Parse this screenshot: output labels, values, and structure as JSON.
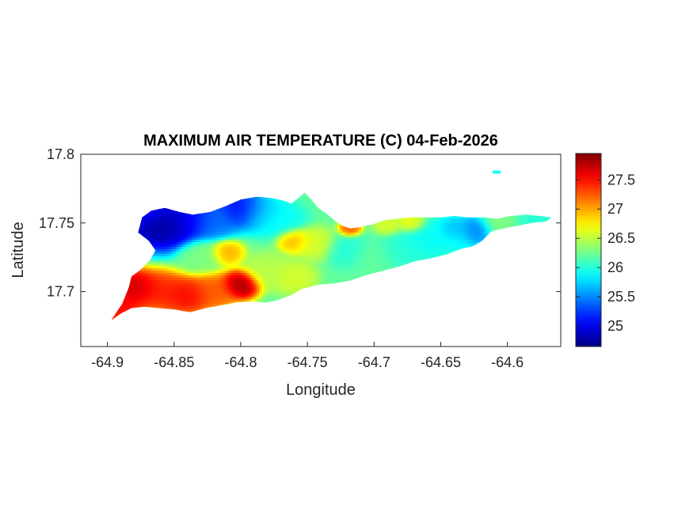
{
  "chart_data": {
    "type": "heatmap",
    "title": "MAXIMUM AIR TEMPERATURE (C) 04-Feb-2026",
    "xlabel": "Longitude",
    "ylabel": "Latitude",
    "xlim": [
      -64.92,
      -64.56
    ],
    "ylim": [
      17.66,
      17.8
    ],
    "xticks": [
      -64.9,
      -64.85,
      -64.8,
      -64.75,
      -64.7,
      -64.65,
      -64.6
    ],
    "xtick_labels": [
      "-64.9",
      "-64.85",
      "-64.8",
      "-64.75",
      "-64.7",
      "-64.65",
      "-64.6"
    ],
    "yticks": [
      17.7,
      17.75,
      17.8
    ],
    "ytick_labels": [
      "17.7",
      "17.75",
      "17.8"
    ],
    "colormap": "jet",
    "clim": [
      24.65,
      27.95
    ],
    "colorbar_ticks": [
      25,
      25.5,
      26,
      26.5,
      27,
      27.5
    ],
    "colorbar_labels": [
      "25",
      "25.5",
      "26",
      "26.5",
      "27",
      "27.5"
    ],
    "island_outline": [
      [
        -64.896,
        17.681
      ],
      [
        -64.889,
        17.691
      ],
      [
        -64.884,
        17.703
      ],
      [
        -64.882,
        17.711
      ],
      [
        -64.875,
        17.716
      ],
      [
        -64.868,
        17.723
      ],
      [
        -64.864,
        17.73
      ],
      [
        -64.869,
        17.737
      ],
      [
        -64.877,
        17.743
      ],
      [
        -64.874,
        17.754
      ],
      [
        -64.867,
        17.759
      ],
      [
        -64.857,
        17.761
      ],
      [
        -64.846,
        17.758
      ],
      [
        -64.836,
        17.756
      ],
      [
        -64.823,
        17.758
      ],
      [
        -64.812,
        17.762
      ],
      [
        -64.8,
        17.767
      ],
      [
        -64.788,
        17.769
      ],
      [
        -64.776,
        17.768
      ],
      [
        -64.767,
        17.766
      ],
      [
        -64.762,
        17.764
      ],
      [
        -64.757,
        17.768
      ],
      [
        -64.752,
        17.772
      ],
      [
        -64.747,
        17.767
      ],
      [
        -64.742,
        17.761
      ],
      [
        -64.736,
        17.757
      ],
      [
        -64.73,
        17.752
      ],
      [
        -64.724,
        17.748
      ],
      [
        -64.718,
        17.746
      ],
      [
        -64.71,
        17.747
      ],
      [
        -64.701,
        17.749
      ],
      [
        -64.692,
        17.752
      ],
      [
        -64.683,
        17.753
      ],
      [
        -64.672,
        17.754
      ],
      [
        -64.66,
        17.754
      ],
      [
        -64.65,
        17.754
      ],
      [
        -64.64,
        17.755
      ],
      [
        -64.63,
        17.754
      ],
      [
        -64.618,
        17.754
      ],
      [
        -64.608,
        17.753
      ],
      [
        -64.598,
        17.755
      ],
      [
        -64.586,
        17.756
      ],
      [
        -64.575,
        17.755
      ],
      [
        -64.567,
        17.754
      ],
      [
        -64.571,
        17.751
      ],
      [
        -64.582,
        17.75
      ],
      [
        -64.592,
        17.748
      ],
      [
        -64.603,
        17.746
      ],
      [
        -64.612,
        17.744
      ],
      [
        -64.619,
        17.737
      ],
      [
        -64.626,
        17.733
      ],
      [
        -64.635,
        17.731
      ],
      [
        -64.646,
        17.727
      ],
      [
        -64.658,
        17.724
      ],
      [
        -64.67,
        17.722
      ],
      [
        -64.682,
        17.718
      ],
      [
        -64.694,
        17.715
      ],
      [
        -64.706,
        17.712
      ],
      [
        -64.718,
        17.708
      ],
      [
        -64.73,
        17.706
      ],
      [
        -64.742,
        17.705
      ],
      [
        -64.754,
        17.702
      ],
      [
        -64.763,
        17.697
      ],
      [
        -64.772,
        17.694
      ],
      [
        -64.781,
        17.692
      ],
      [
        -64.792,
        17.693
      ],
      [
        -64.804,
        17.692
      ],
      [
        -64.815,
        17.69
      ],
      [
        -64.826,
        17.688
      ],
      [
        -64.838,
        17.685
      ],
      [
        -64.85,
        17.687
      ],
      [
        -64.862,
        17.688
      ],
      [
        -64.872,
        17.689
      ],
      [
        -64.882,
        17.688
      ],
      [
        -64.89,
        17.684
      ],
      [
        -64.897,
        17.679
      ]
    ],
    "islet_outline": [
      [
        -64.611,
        17.788
      ],
      [
        -64.605,
        17.788
      ],
      [
        -64.605,
        17.786
      ],
      [
        -64.611,
        17.786
      ]
    ],
    "field_sources": [
      {
        "lon": -64.86,
        "lat": 17.75,
        "value": 24.6,
        "spread": 0.013
      },
      {
        "lon": -64.87,
        "lat": 17.76,
        "value": 25.2,
        "spread": 0.01
      },
      {
        "lon": -64.84,
        "lat": 17.755,
        "value": 25.0,
        "spread": 0.011
      },
      {
        "lon": -64.82,
        "lat": 17.752,
        "value": 25.4,
        "spread": 0.009
      },
      {
        "lon": -64.8,
        "lat": 17.76,
        "value": 25.0,
        "spread": 0.009
      },
      {
        "lon": -64.785,
        "lat": 17.757,
        "value": 25.7,
        "spread": 0.009
      },
      {
        "lon": -64.77,
        "lat": 17.752,
        "value": 25.9,
        "spread": 0.009
      },
      {
        "lon": -64.88,
        "lat": 17.703,
        "value": 27.8,
        "spread": 0.009
      },
      {
        "lon": -64.86,
        "lat": 17.7,
        "value": 27.5,
        "spread": 0.01
      },
      {
        "lon": -64.84,
        "lat": 17.697,
        "value": 27.6,
        "spread": 0.009
      },
      {
        "lon": -64.82,
        "lat": 17.7,
        "value": 27.3,
        "spread": 0.009
      },
      {
        "lon": -64.8,
        "lat": 17.705,
        "value": 27.95,
        "spread": 0.007
      },
      {
        "lon": -64.89,
        "lat": 17.688,
        "value": 27.6,
        "spread": 0.008
      },
      {
        "lon": -64.81,
        "lat": 17.728,
        "value": 27.0,
        "spread": 0.006
      },
      {
        "lon": -64.76,
        "lat": 17.737,
        "value": 27.0,
        "spread": 0.006
      },
      {
        "lon": -64.718,
        "lat": 17.746,
        "value": 27.3,
        "spread": 0.004
      },
      {
        "lon": -64.83,
        "lat": 17.725,
        "value": 26.3,
        "spread": 0.008
      },
      {
        "lon": -64.78,
        "lat": 17.715,
        "value": 26.5,
        "spread": 0.009
      },
      {
        "lon": -64.76,
        "lat": 17.71,
        "value": 26.6,
        "spread": 0.008
      },
      {
        "lon": -64.745,
        "lat": 17.735,
        "value": 26.6,
        "spread": 0.008
      },
      {
        "lon": -64.72,
        "lat": 17.73,
        "value": 26.0,
        "spread": 0.008
      },
      {
        "lon": -64.7,
        "lat": 17.725,
        "value": 26.2,
        "spread": 0.009
      },
      {
        "lon": -64.68,
        "lat": 17.73,
        "value": 26.0,
        "spread": 0.009
      },
      {
        "lon": -64.66,
        "lat": 17.738,
        "value": 25.9,
        "spread": 0.009
      },
      {
        "lon": -64.64,
        "lat": 17.74,
        "value": 25.9,
        "spread": 0.009
      },
      {
        "lon": -64.625,
        "lat": 17.744,
        "value": 25.4,
        "spread": 0.007
      },
      {
        "lon": -64.64,
        "lat": 17.745,
        "value": 25.6,
        "spread": 0.006
      },
      {
        "lon": -64.605,
        "lat": 17.75,
        "value": 26.3,
        "spread": 0.008
      },
      {
        "lon": -64.58,
        "lat": 17.752,
        "value": 26.0,
        "spread": 0.008
      },
      {
        "lon": -64.672,
        "lat": 17.75,
        "value": 26.7,
        "spread": 0.005
      },
      {
        "lon": -64.69,
        "lat": 17.748,
        "value": 26.6,
        "spread": 0.005
      },
      {
        "lon": -64.608,
        "lat": 17.787,
        "value": 25.9,
        "spread": 0.005
      }
    ]
  }
}
